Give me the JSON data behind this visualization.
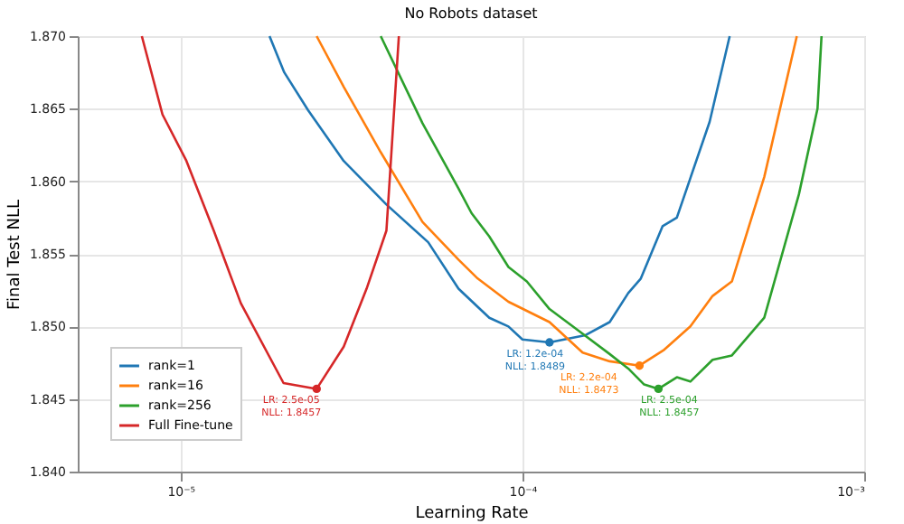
{
  "chart_data": {
    "type": "line",
    "title": "No Robots dataset",
    "xlabel": "Learning Rate",
    "ylabel": "Final Test NLL",
    "log": "x",
    "grid": true,
    "legend": "bottom left",
    "marker": "none",
    "line_style": "solid",
    "xlim": [
      5e-06,
      0.001
    ],
    "xticks": [
      {
        "value": 1e-05,
        "label": "10⁻⁵"
      },
      {
        "value": 0.0001,
        "label": "10⁻⁴"
      },
      {
        "value": 0.001,
        "label": "10⁻³"
      }
    ],
    "ylim": [
      1.84,
      1.87
    ],
    "yticks": [
      {
        "value": 1.84,
        "label": "1.840"
      },
      {
        "value": 1.845,
        "label": "1.845"
      },
      {
        "value": 1.85,
        "label": "1.850"
      },
      {
        "value": 1.855,
        "label": "1.855"
      },
      {
        "value": 1.86,
        "label": "1.860"
      },
      {
        "value": 1.865,
        "label": "1.865"
      },
      {
        "value": 1.87,
        "label": "1.870"
      }
    ],
    "series": [
      {
        "name": "rank=1",
        "color": "#1f77b4",
        "x": [
          1.82e-05,
          2.01e-05,
          2.36e-05,
          3e-05,
          4e-05,
          5.3e-05,
          6.5e-05,
          8e-05,
          9.1e-05,
          0.0001,
          0.00012,
          0.000153,
          0.00018,
          0.000204,
          0.000222,
          0.000257,
          0.000283,
          0.000353,
          0.000404
        ],
        "values": [
          1.87,
          1.8675,
          1.8649,
          1.8614,
          1.8584,
          1.8558,
          1.8526,
          1.8506,
          1.85,
          1.8491,
          1.8489,
          1.8494,
          1.8503,
          1.8523,
          1.8533,
          1.8569,
          1.8575,
          1.8641,
          1.87
        ]
      },
      {
        "name": "rank=16",
        "color": "#ff7f0e",
        "x": [
          2.5e-05,
          3e-05,
          3.85e-05,
          5.1e-05,
          6.5e-05,
          7.4e-05,
          9.1e-05,
          0.00012,
          0.00015,
          0.00018,
          0.00022,
          0.00026,
          0.00031,
          0.00036,
          0.00041,
          0.00051,
          0.000635
        ],
        "values": [
          1.87,
          1.8665,
          1.862,
          1.8572,
          1.8546,
          1.8533,
          1.8517,
          1.8503,
          1.8482,
          1.8476,
          1.8473,
          1.8484,
          1.85,
          1.8521,
          1.8531,
          1.8603,
          1.87
        ]
      },
      {
        "name": "rank=256",
        "color": "#2ca02c",
        "x": [
          3.85e-05,
          5.1e-05,
          6.5e-05,
          7.1e-05,
          8e-05,
          9.1e-05,
          0.000103,
          0.00012,
          0.000148,
          0.00018,
          0.000204,
          0.000227,
          0.00025,
          0.000283,
          0.00031,
          0.00036,
          0.00041,
          0.00051,
          0.000644,
          0.00073,
          0.00075
        ],
        "values": [
          1.87,
          1.864,
          1.8595,
          1.8578,
          1.8562,
          1.8541,
          1.8531,
          1.8512,
          1.8496,
          1.8481,
          1.8471,
          1.846,
          1.8457,
          1.8465,
          1.8462,
          1.8477,
          1.848,
          1.8506,
          1.8591,
          1.865,
          1.87
        ]
      },
      {
        "name": "Full Fine-tune",
        "color": "#d62728",
        "x": [
          7.7e-06,
          8.85e-06,
          1.04e-05,
          1.25e-05,
          1.5e-05,
          2e-05,
          2.5e-05,
          3e-05,
          3.5e-05,
          4e-05,
          4.35e-05
        ],
        "values": [
          1.87,
          1.8646,
          1.8614,
          1.8566,
          1.8516,
          1.8461,
          1.8457,
          1.8486,
          1.8526,
          1.8566,
          1.87
        ]
      }
    ],
    "annotations": [
      {
        "text": "LR: 1.2e-04\nNLL: 1.8489",
        "x": 0.00012,
        "y": 1.8489
      },
      {
        "text": "LR: 2.2e-04\nNLL: 1.8473",
        "x": 0.00022,
        "y": 1.8473
      },
      {
        "text": "LR: 2.5e-04\nNLL: 1.8457",
        "x": 0.00025,
        "y": 1.8457
      },
      {
        "text": "LR: 2.5e-05\nNLL: 1.8457",
        "x": 2.5e-05,
        "y": 1.8457
      }
    ]
  }
}
